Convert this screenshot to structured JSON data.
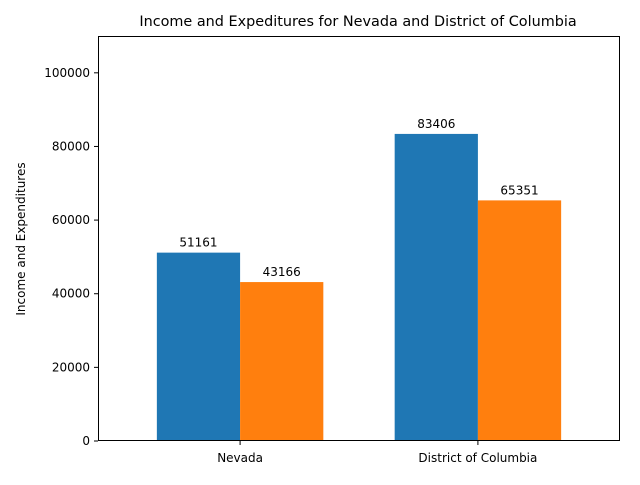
{
  "chart_data": {
    "type": "bar",
    "title": "Income and Expeditures for Nevada and District of Columbia",
    "xlabel": "",
    "ylabel": "Income and Expenditures",
    "categories": [
      "Nevada",
      "District of Columbia"
    ],
    "series": [
      {
        "values": [
          51161,
          83406
        ],
        "color": "#1f77b4"
      },
      {
        "values": [
          43166,
          65351
        ],
        "color": "#ff7f0e"
      }
    ],
    "ylim": [
      0,
      110000
    ],
    "yticks": [
      0,
      20000,
      40000,
      60000,
      80000,
      100000
    ],
    "ytick_labels": [
      "0",
      "20000",
      "40000",
      "60000",
      "80000",
      "100000"
    ],
    "data_labels": [
      [
        "51161",
        "83406"
      ],
      [
        "43166",
        "65351"
      ]
    ],
    "grid": false,
    "legend": "none"
  }
}
